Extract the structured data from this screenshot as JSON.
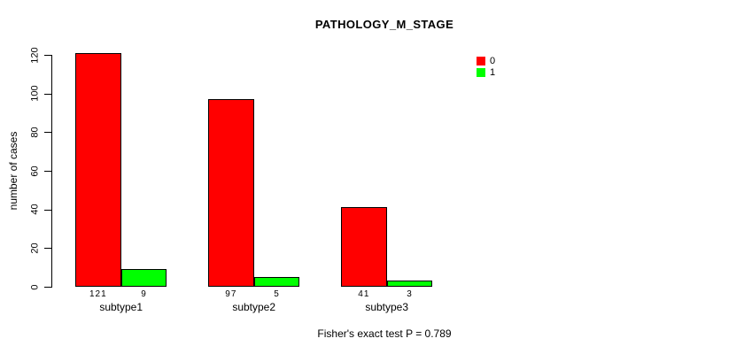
{
  "chart_data": {
    "type": "bar",
    "title": "PATHOLOGY_M_STAGE",
    "ylabel": "number of cases",
    "xlabel": "",
    "categories": [
      "subtype1",
      "subtype2",
      "subtype3"
    ],
    "series": [
      {
        "name": "0",
        "color": "#FF0000",
        "values": [
          121,
          97,
          41
        ]
      },
      {
        "name": "1",
        "color": "#00FF00",
        "values": [
          9,
          5,
          3
        ]
      }
    ],
    "ylim": [
      0,
      120
    ],
    "yticks": [
      0,
      20,
      40,
      60,
      80,
      100,
      120
    ],
    "grid": false,
    "legend_position": "top-right",
    "annotation": "Fisher's exact test P = 0.789",
    "colors": {
      "axis": "#000000",
      "bar_border": "#000000",
      "background": "#FFFFFF"
    }
  }
}
